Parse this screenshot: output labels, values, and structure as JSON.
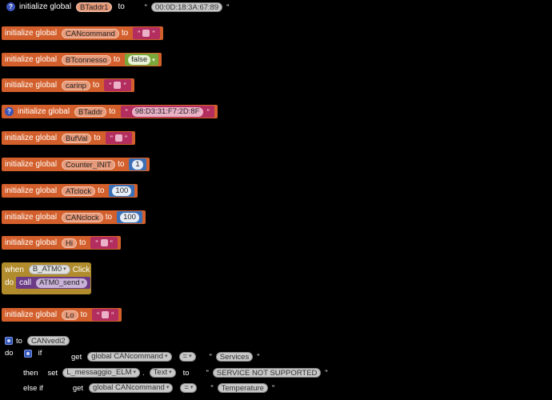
{
  "blocks": {
    "b1": {
      "kw": "initialize global",
      "var": "BTaddr1",
      "to": "to",
      "value": "00:0D:18:3A:67:89"
    },
    "b2": {
      "kw": "initialize global",
      "var": "CANcommand",
      "to": "to"
    },
    "b3": {
      "kw": "initialize global",
      "var": "BTconnesso",
      "to": "to",
      "value": "false"
    },
    "b4": {
      "kw": "initialize global",
      "var": "carinp",
      "to": "to"
    },
    "b5": {
      "kw": "initialize global",
      "var": "BTaddr",
      "to": "to",
      "value": "98:D3:31:F7:2D:8F"
    },
    "b6": {
      "kw": "initialize global",
      "var": "BufVal",
      "to": "to"
    },
    "b7": {
      "kw": "initialize global",
      "var": "Counter_INIT",
      "to": "to",
      "value": "1"
    },
    "b8": {
      "kw": "initialize global",
      "var": "ATclock",
      "to": "to",
      "value": "100"
    },
    "b9": {
      "kw": "initialize global",
      "var": "CANclock",
      "to": "to",
      "value": "100"
    },
    "b10": {
      "kw": "initialize global",
      "var": "Hi",
      "to": "to"
    },
    "b11": {
      "kw": "initialize global",
      "var": "Lo",
      "to": "to"
    }
  },
  "event": {
    "when": "when",
    "component": "B_ATM0",
    "click": "Click",
    "do": "do",
    "call": "call",
    "proc": "ATM0_send"
  },
  "procedure": {
    "to": "to",
    "name": "CANvedi2",
    "do": "do",
    "if": "if",
    "get1": "get",
    "get1_var": "global CANcommand",
    "eq1": "=",
    "str1": "Services",
    "then": "then",
    "set": "set",
    "set_comp": "L_messaggio_ELM",
    "dot": ".",
    "set_prop": "Text",
    "set_to": "to",
    "set_val": "SERVICE NOT SUPPORTED",
    "elseif": "else if",
    "get2": "get",
    "get2_var": "global CANcommand",
    "eq2": "=",
    "str2": "Temperature"
  },
  "icons": {
    "question": "?",
    "quote": "\"",
    "dropdown": "▾"
  },
  "colors": {
    "variable": "#d3602c",
    "text": "#b32d5e",
    "logic": "#7aa83a",
    "math": "#3b6fb6",
    "event": "#b08c2d",
    "procedure": "#6b3b86",
    "background": "#000000"
  }
}
